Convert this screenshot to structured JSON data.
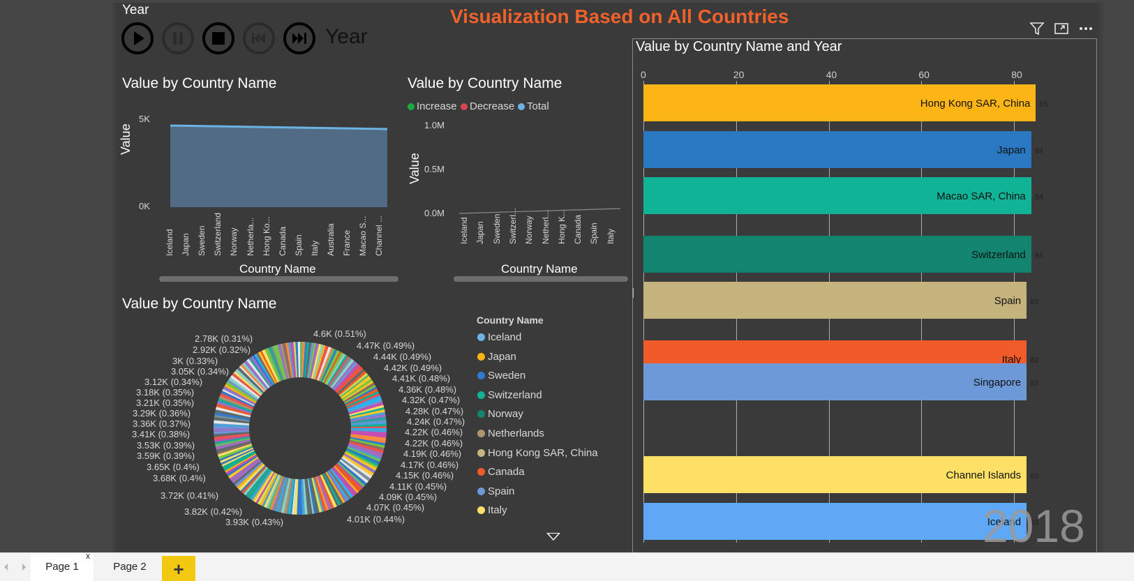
{
  "page_title": "Visualization Based on All Countries",
  "play_axis": {
    "header": "Year",
    "field_label": "Year",
    "current_year": "2018"
  },
  "visual_header_icons": [
    "filter-icon",
    "focus-mode-icon",
    "more-options-icon"
  ],
  "area_chart": {
    "title": "Value by Country Name",
    "ylabel": "Value",
    "xlabel": "Country Name",
    "y_ticks": [
      "5K",
      "0K"
    ],
    "categories": [
      "Iceland",
      "Japan",
      "Sweden",
      "Switzerland",
      "Norway",
      "Netherla...",
      "Hong Ko...",
      "Canada",
      "Spain",
      "Italy",
      "Australia",
      "France",
      "Macao S...",
      "Channel ..."
    ]
  },
  "waterfall_chart": {
    "title": "Value by Country Name",
    "legend": [
      {
        "label": "Increase",
        "color": "#1aab40"
      },
      {
        "label": "Decrease",
        "color": "#d64550"
      },
      {
        "label": "Total",
        "color": "#6cb3e5"
      }
    ],
    "ylabel": "Value",
    "xlabel": "Country Name",
    "y_ticks": [
      "1.0M",
      "0.5M",
      "0.0M"
    ],
    "categories": [
      "Iceland",
      "Japan",
      "Sweden",
      "Switzerl...",
      "Norway",
      "Netherl...",
      "Hong K...",
      "Canada",
      "Spain",
      "Italy"
    ]
  },
  "donut_chart": {
    "title": "Value by Country Name",
    "labels_left": [
      "2.78K (0.31%)",
      "2.92K (0.32%)",
      "3K (0.33%)",
      "3.05K (0.34%)",
      "3.12K (0.34%)",
      "3.18K (0.35%)",
      "3.21K (0.35%)",
      "3.29K (0.36%)",
      "3.36K (0.37%)",
      "3.41K (0.38%)",
      "3.53K (0.39%)",
      "3.59K (0.39%)",
      "3.65K (0.4%)",
      "3.68K (0.4%)",
      "3.72K (0.41%)",
      "3.82K (0.42%)",
      "3.93K (0.43%)"
    ],
    "labels_right": [
      "4.6K (0.51%)",
      "4.47K (0.49%)",
      "4.44K (0.49%)",
      "4.42K (0.49%)",
      "4.41K (0.48%)",
      "4.36K (0.48%)",
      "4.32K (0.47%)",
      "4.28K (0.47%)",
      "4.24K (0.47%)",
      "4.22K (0.46%)",
      "4.22K (0.46%)",
      "4.19K (0.46%)",
      "4.17K (0.46%)",
      "4.15K (0.46%)",
      "4.11K (0.45%)",
      "4.09K (0.45%)",
      "4.07K (0.45%)",
      "4.01K (0.44%)"
    ],
    "legend_title": "Country Name",
    "legend": [
      {
        "label": "Iceland",
        "color": "#6cb3e5"
      },
      {
        "label": "Japan",
        "color": "#fdb515"
      },
      {
        "label": "Sweden",
        "color": "#2f7bd0"
      },
      {
        "label": "Switzerland",
        "color": "#10b396"
      },
      {
        "label": "Norway",
        "color": "#138470"
      },
      {
        "label": "Netherlands",
        "color": "#b0956d"
      },
      {
        "label": "Hong Kong SAR, China",
        "color": "#c8b581"
      },
      {
        "label": "Canada",
        "color": "#f15a29"
      },
      {
        "label": "Spain",
        "color": "#6d99d9"
      },
      {
        "label": "Italy",
        "color": "#ffe066"
      }
    ]
  },
  "bar_chart": {
    "title": "Value by Country Name and Year",
    "x_ticks": [
      "0",
      "20",
      "40",
      "60",
      "80"
    ],
    "bars": [
      {
        "label": "Hong Kong SAR, China",
        "value": 85,
        "value_label": "85",
        "color": "#fdb515"
      },
      {
        "label": "Japan",
        "value": 84,
        "value_label": "84",
        "color": "#2a78c2"
      },
      {
        "label": "Macao SAR, China",
        "value": 84,
        "value_label": "84",
        "color": "#10b396"
      },
      {
        "label": "Switzerland",
        "value": 84,
        "value_label": "84",
        "color": "#138470"
      },
      {
        "label": "Spain",
        "value": 83,
        "value_label": "83",
        "color": "#c4b37d"
      },
      {
        "label": "Italy",
        "value": 83,
        "value_label": "83",
        "color": "#f15a29"
      },
      {
        "label": "Singapore",
        "value": 83,
        "value_label": "83",
        "color": "#6d99d9"
      },
      {
        "label": "Channel Islands",
        "value": 83,
        "value_label": "83",
        "color": "#ffe066"
      },
      {
        "label": "Iceland",
        "value": 83,
        "value_label": "83",
        "color": "#5fa8f5"
      }
    ]
  },
  "tabs": [
    {
      "label": "Page 1",
      "close": "x"
    },
    {
      "label": "Page 2"
    }
  ],
  "add_tab_label": "+"
}
